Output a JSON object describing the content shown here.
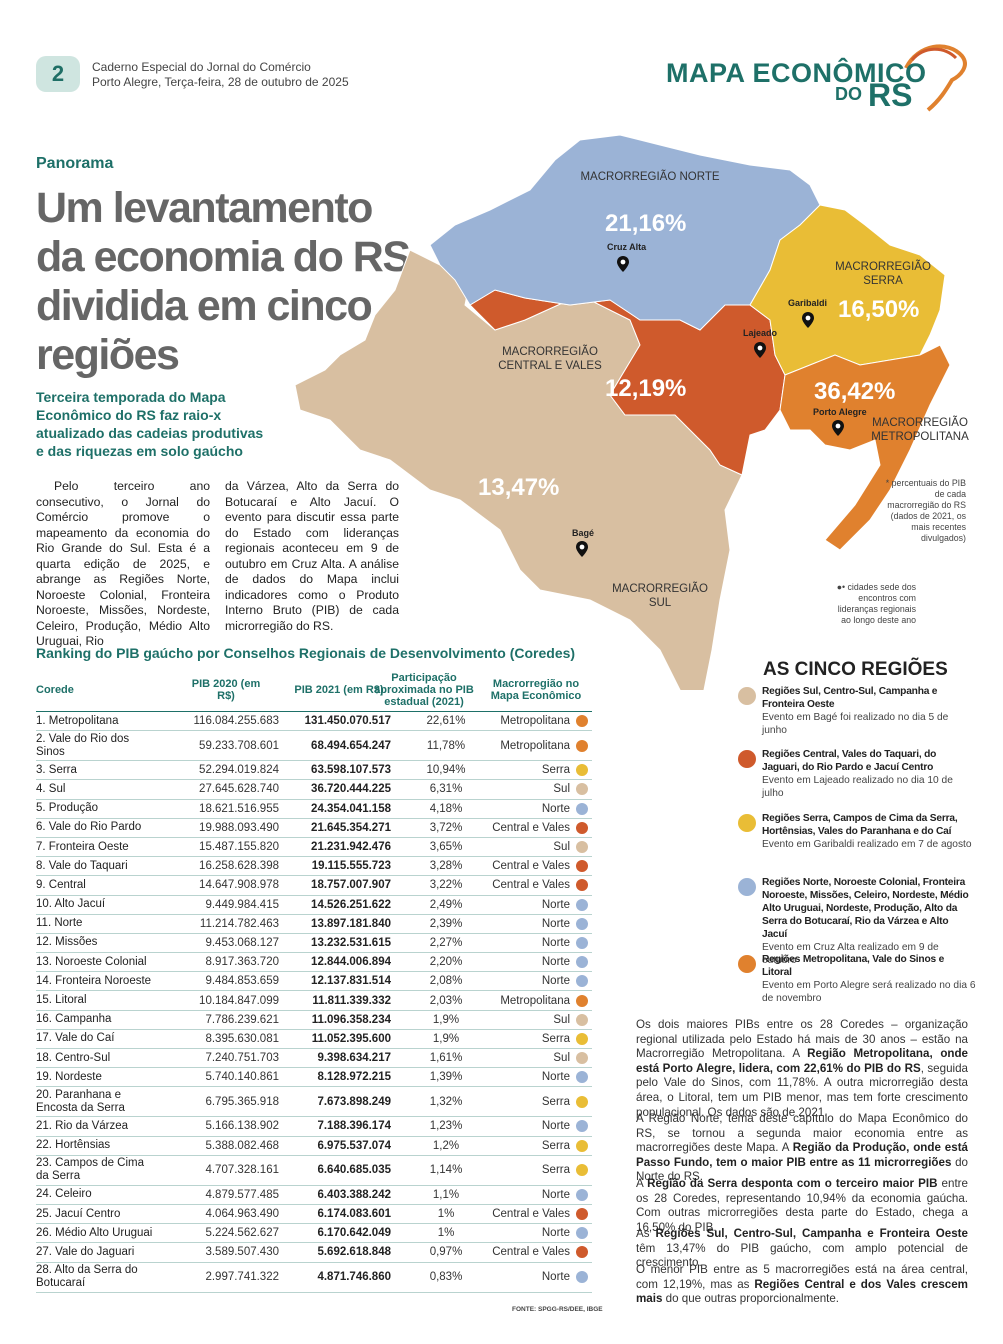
{
  "header": {
    "page_number": "2",
    "line1": "Caderno Especial do Jornal do Comércio",
    "line2": "Porto Alegre, Terça-feira, 28 de outubro de 2025",
    "logo_line1": "MAPA ECONÔMICO",
    "logo_do": "DO",
    "logo_rs": "RS"
  },
  "article": {
    "kicker": "Panorama",
    "headline": "Um levantamento da economia do RS dividida em cinco regiões",
    "subtitle": "Terceira temporada do Mapa Econômico do RS faz raio-x atualizado das cadeias produtivas e das riquezas em solo gaúcho",
    "body_col1": "Pelo terceiro ano consecutivo, o Jornal do Comércio promove o mapeamento da economia do Rio Grande do Sul. Esta é a quarta edição de 2025, e abrange as Regiões Norte, Noroeste Colonial, Fronteira Noroeste, Missões, Nordeste, Celeiro, Produção, Médio Alto Uruguai, Rio",
    "body_col2": "da Várzea, Alto da Serra do Botucaraí e Alto Jacuí. O evento para discutir essa parte do Estado com lideranças regionais aconteceu em 9 de outubro em Cruz Alta. A análise de dados do Mapa inclui indicadores como o Produto Interno Bruto (PIB) de cada microrregião do RS."
  },
  "map": {
    "colors": {
      "norte": "#9bb3d6",
      "serra": "#e9bd36",
      "central": "#cf5a2c",
      "metro": "#e0812e",
      "sul": "#d8bfa1"
    },
    "regions": {
      "norte": {
        "label": "MACRORREGIÃO NORTE",
        "pct": "21,16%"
      },
      "serra": {
        "label": "MACRORREGIÃO SERRA",
        "pct": "16,50%"
      },
      "central": {
        "label": "MACRORREGIÃO CENTRAL E VALES",
        "pct": "12,19%"
      },
      "metro": {
        "label": "MACRORREGIÃO METROPOLITANA",
        "pct": "36,42%"
      },
      "sul": {
        "label": "MACRORREGIÃO SUL",
        "pct": "13,47%"
      }
    },
    "cities": {
      "cruz_alta": "Cruz Alta",
      "garibaldi": "Garibaldi",
      "lajeado": "Lajeado",
      "porto_alegre": "Porto Alegre",
      "bage": "Bagé"
    },
    "note_pct": "* percentuais do PIB de cada macrorregião do RS (dados de 2021, os mais recentes divulgados)",
    "note_pins": "cidades sede dos encontros com lideranças regionais ao longo deste ano"
  },
  "legend": {
    "title": "AS CINCO REGIÕES",
    "items": [
      {
        "title": "Regiões Sul, Centro-Sul, Campanha e Fronteira Oeste",
        "desc": "Evento em Bagé foi realizado no dia 5 de junho",
        "color": "#d8bfa1"
      },
      {
        "title": "Regiões Central, Vales do Taquari, do Jaguari, do Rio Pardo e Jacuí Centro",
        "desc": "Evento em Lajeado realizado no dia 10 de julho",
        "color": "#cf5a2c"
      },
      {
        "title": "Regiões Serra, Campos de Cima da Serra, Hortênsias, Vales do Paranhana e do Caí",
        "desc": "Evento em Garibaldi realizado em 7 de agosto",
        "color": "#e9bd36"
      },
      {
        "title": "Regiões Norte, Noroeste Colonial, Fronteira Noroeste, Missões, Celeiro, Nordeste, Médio Alto Uruguai, Nordeste, Produção, Alto da Serra do Botucaraí, Rio da Várzea e Alto Jacuí",
        "desc": "Evento em Cruz Alta realizado em 9 de outubro",
        "color": "#9bb3d6"
      },
      {
        "title": "Regiões Metropolitana, Vale do Sinos e Litoral",
        "desc": "Evento em Porto Alegre será realizado no dia 6 de novembro",
        "color": "#e0812e"
      }
    ]
  },
  "table": {
    "title": "Ranking do PIB gaúcho por Conselhos Regionais de Desenvolvimento (Coredes)",
    "headers": [
      "Corede",
      "PIB 2020 (em R$)",
      "PIB 2021 (em R$)",
      "Participação aproximada no PIB estadual (2021)",
      "Macrorregião no Mapa Econômico"
    ],
    "rows": [
      [
        "1. Metropolitana",
        "116.084.255.683",
        "131.450.070.517",
        "22,61%",
        "Metropolitana",
        "metro"
      ],
      [
        "2. Vale do Rio dos Sinos",
        "59.233.708.601",
        "68.494.654.247",
        "11,78%",
        "Metropolitana",
        "metro"
      ],
      [
        "3. Serra",
        "52.294.019.824",
        "63.598.107.573",
        "10,94%",
        "Serra",
        "serra"
      ],
      [
        "4. Sul",
        "27.645.628.740",
        "36.720.444.225",
        "6,31%",
        "Sul",
        "sul"
      ],
      [
        "5. Produção",
        "18.621.516.955",
        "24.354.041.158",
        "4,18%",
        "Norte",
        "norte"
      ],
      [
        "6. Vale do Rio Pardo",
        "19.988.093.490",
        "21.645.354.271",
        "3,72%",
        "Central e Vales",
        "central"
      ],
      [
        "7. Fronteira Oeste",
        "15.487.155.820",
        "21.231.942.476",
        "3,65%",
        "Sul",
        "sul"
      ],
      [
        "8. Vale do Taquari",
        "16.258.628.398",
        "19.115.555.723",
        "3,28%",
        "Central e Vales",
        "central"
      ],
      [
        "9. Central",
        "14.647.908.978",
        "18.757.007.907",
        "3,22%",
        "Central e Vales",
        "central"
      ],
      [
        "10. Alto Jacuí",
        "9.449.984.415",
        "14.526.251.622",
        "2,49%",
        "Norte",
        "norte"
      ],
      [
        "11. Norte",
        "11.214.782.463",
        "13.897.181.840",
        "2,39%",
        "Norte",
        "norte"
      ],
      [
        "12. Missões",
        "9.453.068.127",
        "13.232.531.615",
        "2,27%",
        "Norte",
        "norte"
      ],
      [
        "13. Noroeste Colonial",
        "8.917.363.720",
        "12.844.006.894",
        "2,20%",
        "Norte",
        "norte"
      ],
      [
        "14. Fronteira Noroeste",
        "9.484.853.659",
        "12.137.831.514",
        "2,08%",
        "Norte",
        "norte"
      ],
      [
        "15. Litoral",
        "10.184.847.099",
        "11.811.339.332",
        "2,03%",
        "Metropolitana",
        "metro"
      ],
      [
        "16. Campanha",
        "7.786.239.621",
        "11.096.358.234",
        "1,9%",
        "Sul",
        "sul"
      ],
      [
        "17. Vale do Caí",
        "8.395.630.081",
        "11.052.395.600",
        "1,9%",
        "Serra",
        "serra"
      ],
      [
        "18. Centro-Sul",
        "7.240.751.703",
        "9.398.634.217",
        "1,61%",
        "Sul",
        "sul"
      ],
      [
        "19. Nordeste",
        "5.740.140.861",
        "8.128.972.215",
        "1,39%",
        "Norte",
        "norte"
      ],
      [
        "20. Paranhana e Encosta da Serra",
        "6.795.365.918",
        "7.673.898.249",
        "1,32%",
        "Serra",
        "serra"
      ],
      [
        "21. Rio da Várzea",
        "5.166.138.902",
        "7.188.396.174",
        "1,23%",
        "Norte",
        "norte"
      ],
      [
        "22. Hortênsias",
        "5.388.082.468",
        "6.975.537.074",
        "1,2%",
        "Serra",
        "serra"
      ],
      [
        "23. Campos de Cima da Serra",
        "4.707.328.161",
        "6.640.685.035",
        "1,14%",
        "Serra",
        "serra"
      ],
      [
        "24. Celeiro",
        "4.879.577.485",
        "6.403.388.242",
        "1,1%",
        "Norte",
        "norte"
      ],
      [
        "25. Jacuí Centro",
        "4.064.963.490",
        "6.174.083.601",
        "1%",
        "Central e Vales",
        "central"
      ],
      [
        "26. Médio Alto Uruguai",
        "5.224.562.627",
        "6.170.642.049",
        "1%",
        "Norte",
        "norte"
      ],
      [
        "27. Vale do Jaguari",
        "3.589.507.430",
        "5.692.618.848",
        "0,97%",
        "Central e Vales",
        "central"
      ],
      [
        "28. Alto da Serra do Botucaraí",
        "2.997.741.322",
        "4.871.746.860",
        "0,83%",
        "Norte",
        "norte"
      ]
    ],
    "source": "FONTE: SPGG-RS/DEE, IBGE"
  },
  "side_text": [
    {
      "parts": [
        [
          "Os dois maiores PIBs entre os 28 Coredes – organização regional utilizada pelo Estado há mais de 30 anos – estão na Macrorregião Metropolitana. A ",
          false
        ],
        [
          "Região Metropolitana, onde está Porto Alegre, lidera, com 22,61% do PIB do RS",
          true
        ],
        [
          ", seguida pelo Vale do Sinos, com 11,78%. A outra microrregião desta área, o Litoral, tem um PIB menor, mas tem forte crescimento populacional. Os dados são de 2021.",
          false
        ]
      ]
    },
    {
      "parts": [
        [
          "A Região Norte, tema deste capítulo do Mapa Econômico do RS, se tornou a segunda maior economia entre as macrorregiões deste Mapa. A ",
          false
        ],
        [
          "Região da Produção, onde está Passo Fundo, tem o maior PIB entre as 11 microrregiões",
          true
        ],
        [
          " do Norte do RS.",
          false
        ]
      ]
    },
    {
      "parts": [
        [
          "A ",
          false
        ],
        [
          "Região da Serra desponta com o terceiro maior PIB",
          true
        ],
        [
          " entre os 28 Coredes, representando 10,94% da economia gaúcha. Com outras microrregiões desta parte do Estado, chega a 16,50% do PIB.",
          false
        ]
      ]
    },
    {
      "parts": [
        [
          "As ",
          false
        ],
        [
          "Regiões Sul, Centro-Sul, Campanha e Fronteira Oeste",
          true
        ],
        [
          " têm 13,47% do PIB gaúcho, com amplo potencial de crescimento.",
          false
        ]
      ]
    },
    {
      "parts": [
        [
          "O menor PIB entre as 5 macrorregiões está na área central, com 12,19%, mas as ",
          false
        ],
        [
          "Regiões Central e dos Vales crescem mais",
          true
        ],
        [
          " do que outras proporcionalmente.",
          false
        ]
      ]
    }
  ]
}
